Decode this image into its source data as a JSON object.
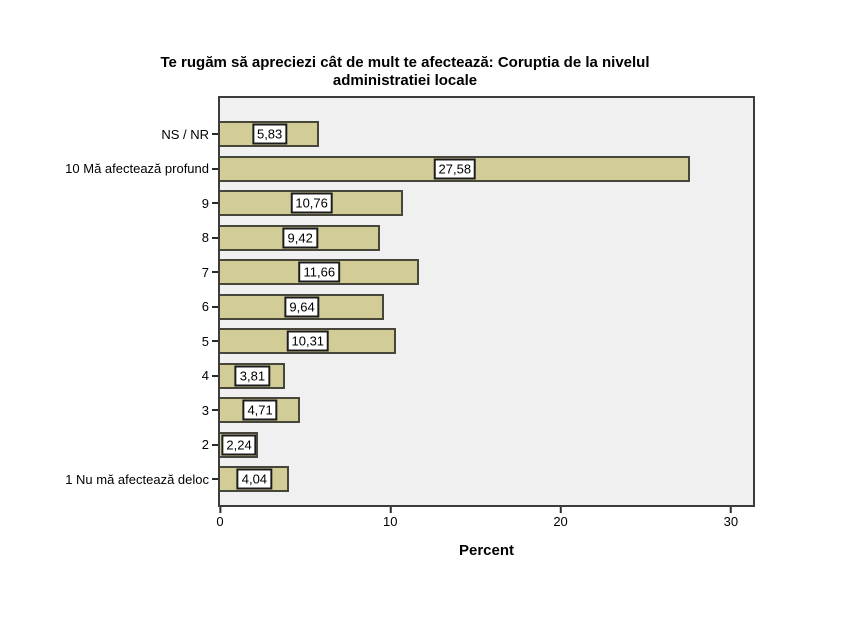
{
  "chart_data": {
    "type": "bar",
    "orientation": "horizontal",
    "title": "Te rugăm să apreciezi cât de mult te afectează: Coruptia de la nivelul administratiei locale",
    "title_lines": [
      "Te rugăm să apreciezi cât de mult te afectează: Coruptia de la nivelul",
      "administratiei locale"
    ],
    "xlabel": "Percent",
    "ylabel": "",
    "xlim": [
      0,
      31.3
    ],
    "xticks": [
      {
        "value": 0,
        "label": "0"
      },
      {
        "value": 10,
        "label": "10"
      },
      {
        "value": 20,
        "label": "20"
      },
      {
        "value": 30,
        "label": "30"
      }
    ],
    "grid": false,
    "legend": false,
    "categories": [
      "NS / NR",
      "10 Mă afectează profund",
      "9",
      "8",
      "7",
      "6",
      "5",
      "4",
      "3",
      "2",
      "1 Nu mă afectează deloc"
    ],
    "values": [
      5.83,
      27.58,
      10.76,
      9.42,
      11.66,
      9.64,
      10.31,
      3.81,
      4.71,
      2.24,
      4.04
    ],
    "value_labels": [
      "5,83",
      "27,58",
      "10,76",
      "9,42",
      "11,66",
      "9,64",
      "10,31",
      "3,81",
      "4,71",
      "2,24",
      "4,04"
    ]
  },
  "colors": {
    "bar_fill": "#d2cd96",
    "bar_border": "#46463a",
    "plot_bg": "#f0f0f0",
    "frame_border": "#3c3c3c",
    "label_box_bg": "#ffffff",
    "label_box_border": "#1c1c1c",
    "axis_color": "#2a2a2a",
    "text_color": "#000000"
  }
}
